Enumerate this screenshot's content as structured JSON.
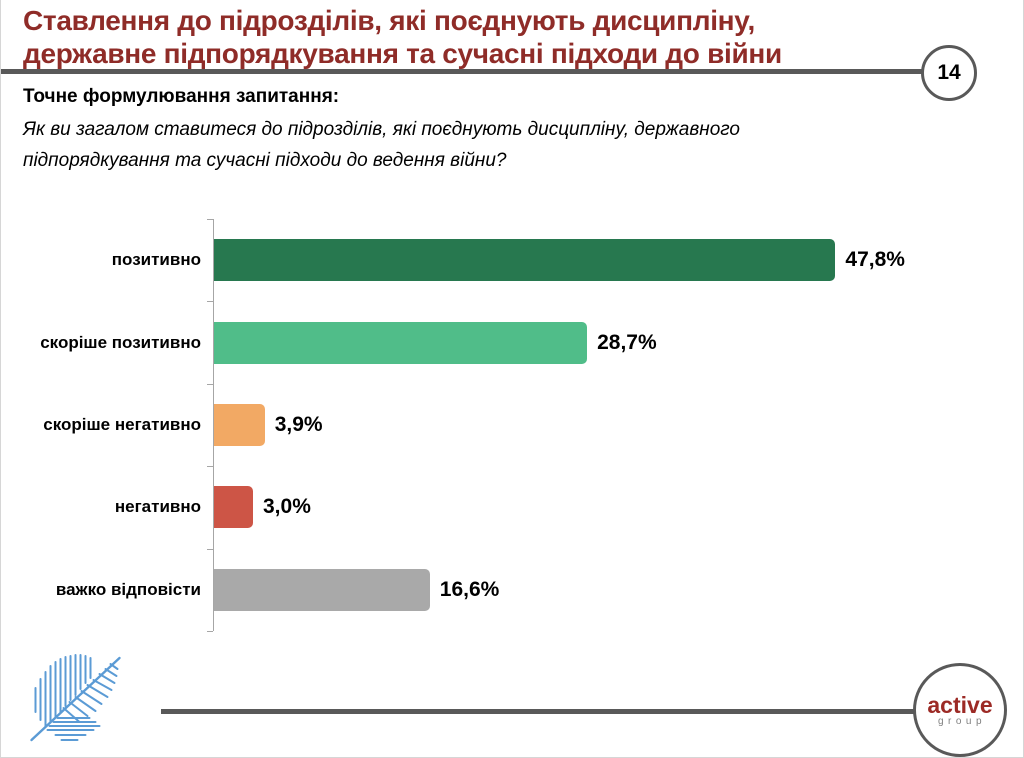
{
  "slide": {
    "title": "Ставлення до підрозділів, які поєднують дисципліну,\nдержавне підпорядкування та сучасні підходи до війни",
    "page_number": "14",
    "question_heading": "Точне формулювання запитання:",
    "question_text": "Як ви загалом ставитеся до підрозділів, які поєднують дисципліну, державного\nпідпорядкування та сучасні підходи до ведення війни?"
  },
  "chart_data": {
    "type": "bar",
    "orientation": "horizontal",
    "categories": [
      "позитивно",
      "скоріше позитивно",
      "скоріше негативно",
      "негативно",
      "важко відповісти"
    ],
    "values": [
      47.8,
      28.7,
      3.9,
      3.0,
      16.6
    ],
    "value_labels": [
      "47,8%",
      "28,7%",
      "3,9%",
      "3,0%",
      "16,6%"
    ],
    "bar_colors": [
      "#27784f",
      "#50bd89",
      "#f2a964",
      "#cd5546",
      "#a9a9a9"
    ],
    "xlim": [
      0,
      50
    ],
    "grid": false,
    "legend": false,
    "title": "",
    "xlabel": "",
    "ylabel": ""
  },
  "footer": {
    "brand_name": "active",
    "brand_sub": "group"
  },
  "colors": {
    "title_text": "#8f2c28",
    "rule_gray": "#595959",
    "axis_gray": "#a6a6a6",
    "leaf_blue": "#5b9bd5",
    "brand_red": "#9c2a25"
  }
}
